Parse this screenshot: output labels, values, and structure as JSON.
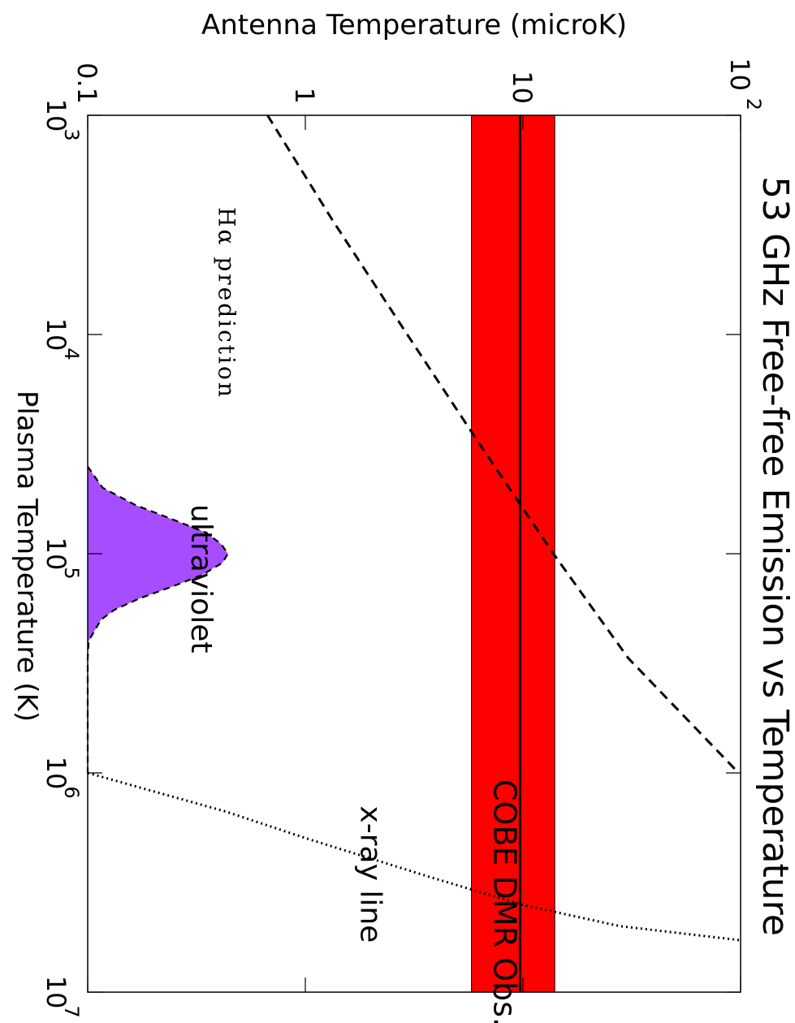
{
  "chart_data": {
    "type": "line",
    "orientation": "rotated-90-clockwise",
    "title": "53 GHz Free-free Emission vs Temperature",
    "xlabel": "Plasma Temperature (K)",
    "ylabel": "Antenna Temperature (microK)",
    "xscale": "log",
    "yscale": "log",
    "xlim": [
      1000,
      10000000
    ],
    "ylim": [
      0.1,
      100
    ],
    "x_ticks": [
      {
        "value": 1000,
        "base": "10",
        "exp": "3"
      },
      {
        "value": 10000,
        "base": "10",
        "exp": "4"
      },
      {
        "value": 100000,
        "base": "10",
        "exp": "5"
      },
      {
        "value": 1000000,
        "base": "10",
        "exp": "6"
      },
      {
        "value": 10000000,
        "base": "10",
        "exp": "7"
      }
    ],
    "y_ticks": [
      {
        "value": 0.1,
        "label": "0.1",
        "exp": ""
      },
      {
        "value": 1,
        "label": "1",
        "exp": ""
      },
      {
        "value": 10,
        "label": "10",
        "exp": ""
      },
      {
        "value": 100,
        "label": "10",
        "exp": "2"
      }
    ],
    "observation_band": {
      "label": "COBE DMR Obs.",
      "value": 9.7,
      "lower": 5.8,
      "upper": 14.0,
      "color": "#ff0000"
    },
    "series": [
      {
        "name": "Hα prediction",
        "style": "dashed",
        "x": [
          1000,
          3000,
          10000,
          30000,
          100000,
          300000,
          1000000
        ],
        "y": [
          0.67,
          1.33,
          2.94,
          6.1,
          13.8,
          30.5,
          98
        ]
      },
      {
        "name": "x-ray line",
        "style": "dotted",
        "x": [
          1000000,
          1500000,
          2000000,
          3000000,
          4000000,
          5000000,
          5800000
        ],
        "y": [
          0.1,
          0.43,
          1.03,
          3.8,
          10.0,
          27.9,
          100
        ]
      },
      {
        "name": "ultraviolet",
        "style": "dashed-filled",
        "fill": "#a64dff",
        "x": [
          40000,
          50000,
          60000,
          70000,
          80000,
          90000,
          100000,
          110000,
          125000,
          140000,
          160000,
          180000,
          200000,
          250000,
          300000,
          400000,
          1000000
        ],
        "y": [
          0.1,
          0.117,
          0.166,
          0.248,
          0.348,
          0.409,
          0.441,
          0.416,
          0.335,
          0.25,
          0.173,
          0.133,
          0.115,
          0.101,
          0.1,
          0.1,
          0.1
        ]
      }
    ],
    "annotations": [
      {
        "text": "Hα prediction",
        "x": 7200,
        "y": 0.4
      },
      {
        "text": "ultraviolet",
        "x": 130000,
        "y": 0.3
      },
      {
        "text": "x-ray line",
        "x": 2900000,
        "y": 1.8
      }
    ]
  }
}
